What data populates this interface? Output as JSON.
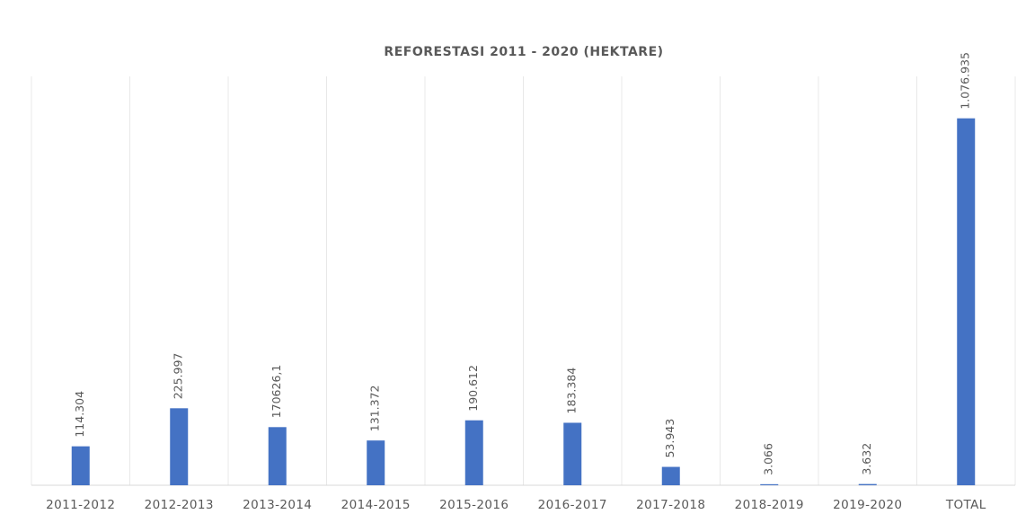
{
  "chart_data": {
    "type": "bar",
    "title": "REFORESTASI 2011 - 2020 (HEKTARE)",
    "categories": [
      "2011-2012",
      "2012-2013",
      "2013-2014",
      "2014-2015",
      "2015-2016",
      "2016-2017",
      "2017-2018",
      "2018-2019",
      "2019-2020",
      "TOTAL"
    ],
    "values": [
      114304,
      225997,
      170626.1,
      131372,
      190612,
      183384,
      53943,
      3066,
      3632,
      1076935
    ],
    "value_labels": [
      "114.304",
      "225.997",
      "170626,1",
      "131.372",
      "190.612",
      "183.384",
      "53.943",
      "3.066",
      "3.632",
      "1.076.935"
    ],
    "color": "#4472c4",
    "ylim": [
      0,
      1200000
    ]
  }
}
